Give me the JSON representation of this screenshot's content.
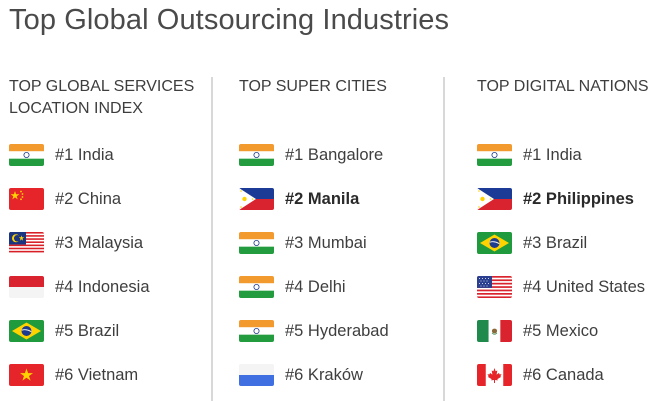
{
  "title": "Top Global Outsourcing Industries",
  "columns": [
    {
      "header_line1": "TOP GLOBAL SERVICES",
      "header_line2": "LOCATION INDEX",
      "items": [
        {
          "label": "#1 India",
          "flag": "india-flag-icon",
          "bold": false
        },
        {
          "label": "#2 China",
          "flag": "china-flag-icon",
          "bold": false
        },
        {
          "label": "#3 Malaysia",
          "flag": "malaysia-flag-icon",
          "bold": false
        },
        {
          "label": "#4 Indonesia",
          "flag": "indonesia-flag-icon",
          "bold": false
        },
        {
          "label": "#5 Brazil",
          "flag": "brazil-flag-icon",
          "bold": false
        },
        {
          "label": "#6 Vietnam",
          "flag": "vietnam-flag-icon",
          "bold": false
        }
      ]
    },
    {
      "header_line1": "TOP SUPER CITIES",
      "header_line2": "",
      "items": [
        {
          "label": "#1 Bangalore",
          "flag": "india-flag-icon",
          "bold": false
        },
        {
          "label": "#2 Manila",
          "flag": "philippines-flag-icon",
          "bold": true
        },
        {
          "label": "#3 Mumbai",
          "flag": "india-flag-icon",
          "bold": false
        },
        {
          "label": "#4 Delhi",
          "flag": "india-flag-icon",
          "bold": false
        },
        {
          "label": "#5 Hyderabad",
          "flag": "india-flag-icon",
          "bold": false
        },
        {
          "label": "#6 Kraków",
          "flag": "poland-flag-icon",
          "bold": false
        }
      ]
    },
    {
      "header_line1": "TOP DIGITAL NATIONS",
      "header_line2": "",
      "items": [
        {
          "label": "#1 India",
          "flag": "india-flag-icon",
          "bold": false
        },
        {
          "label": "#2 Philippines",
          "flag": "philippines-flag-icon",
          "bold": true
        },
        {
          "label": "#3 Brazil",
          "flag": "brazil-flag-icon",
          "bold": false
        },
        {
          "label": "#4 United States",
          "flag": "united-states-flag-icon",
          "bold": false
        },
        {
          "label": "#5 Mexico",
          "flag": "mexico-flag-icon",
          "bold": false
        },
        {
          "label": "#6 Canada",
          "flag": "canada-flag-icon",
          "bold": false
        }
      ]
    }
  ],
  "colors": {
    "text": "#3e3e3e",
    "divider": "#d8d8d8"
  }
}
